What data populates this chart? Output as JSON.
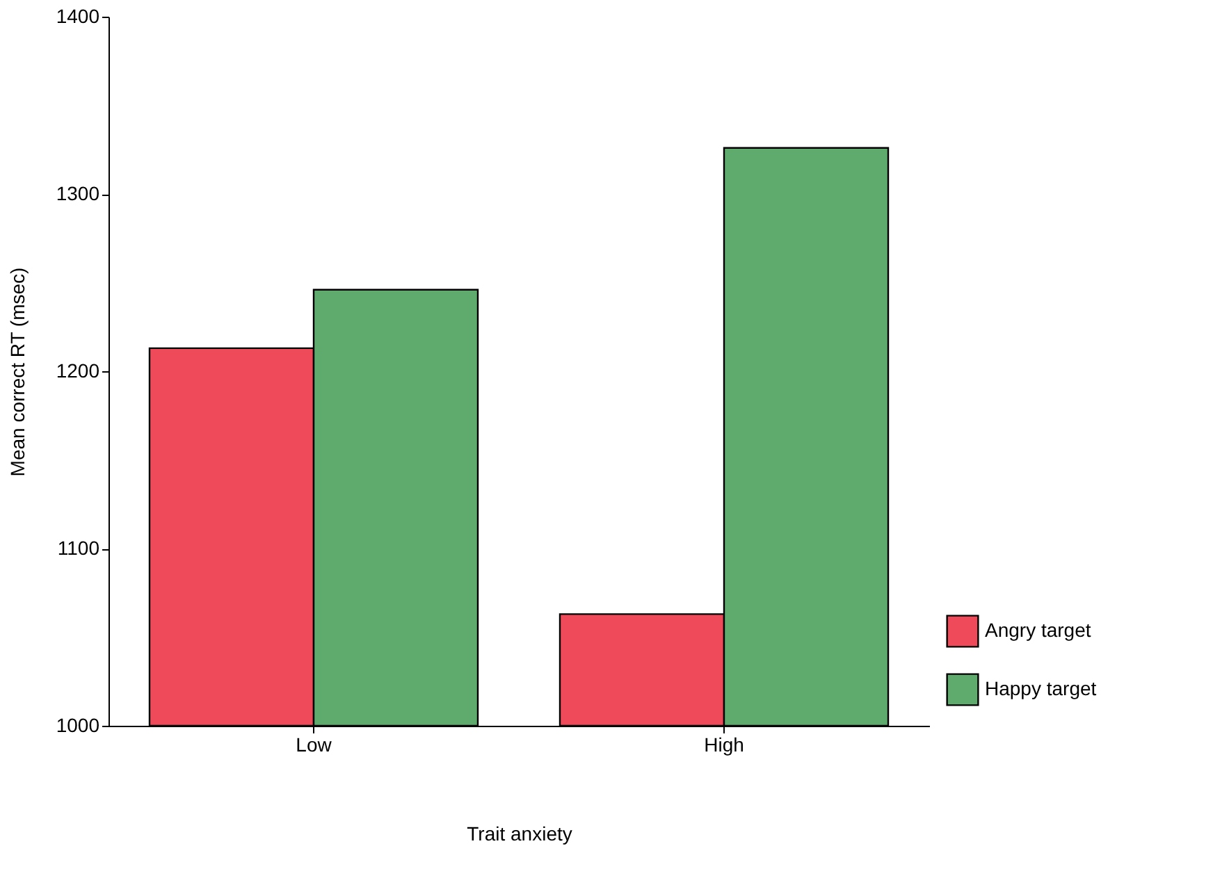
{
  "chart_data": {
    "type": "bar",
    "xlabel": "Trait anxiety",
    "ylabel": "Mean correct RT (msec)",
    "categories": [
      "Low",
      "High"
    ],
    "series": [
      {
        "name": "Angry target",
        "color": "#ef4a5a",
        "values": [
          1213,
          1063
        ]
      },
      {
        "name": "Happy target",
        "color": "#5fab6e",
        "values": [
          1246,
          1326
        ]
      }
    ],
    "ylim": [
      1000,
      1400
    ],
    "yticks": [
      1000,
      1100,
      1200,
      1300,
      1400
    ],
    "grid": false,
    "legend": "right"
  }
}
